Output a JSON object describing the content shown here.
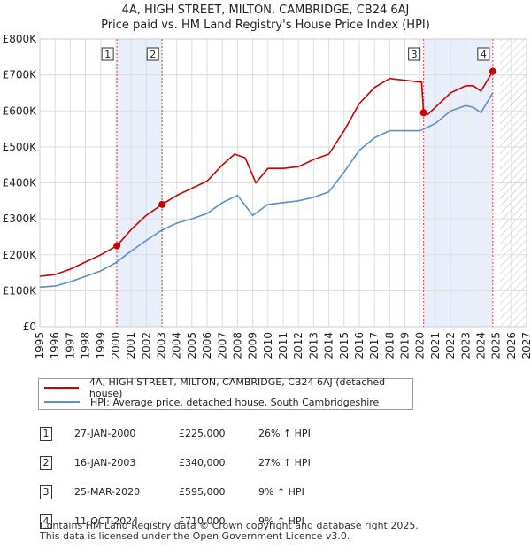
{
  "title": "4A, HIGH STREET, MILTON, CAMBRIDGE, CB24 6AJ",
  "subtitle": "Price paid vs. HM Land Registry's House Price Index (HPI)",
  "chart_data": {
    "type": "line",
    "ylim": [
      0,
      800000
    ],
    "xlim": [
      1995,
      2027
    ],
    "y_ticks": [
      0,
      100000,
      200000,
      300000,
      400000,
      500000,
      600000,
      700000,
      800000
    ],
    "y_tick_labels": [
      "£0",
      "£100K",
      "£200K",
      "£300K",
      "£400K",
      "£500K",
      "£600K",
      "£700K",
      "£800K"
    ],
    "x_ticks": [
      1995,
      1996,
      1997,
      1998,
      1999,
      2000,
      2001,
      2002,
      2003,
      2004,
      2005,
      2006,
      2007,
      2008,
      2009,
      2010,
      2011,
      2012,
      2013,
      2014,
      2015,
      2016,
      2017,
      2018,
      2019,
      2020,
      2021,
      2022,
      2023,
      2024,
      2025,
      2026,
      2027
    ],
    "grid": true,
    "projection_start": 2025.25,
    "shaded_periods": [
      [
        2000.07,
        2003.04
      ],
      [
        2020.23,
        2024.78
      ]
    ],
    "series": [
      {
        "name": "4A, HIGH STREET, MILTON, CAMBRIDGE, CB24 6AJ (detached house)",
        "color": "#cc0000",
        "x": [
          1995,
          1996,
          1997,
          1998,
          1999,
          2000.07,
          2001,
          2002,
          2003.04,
          2004,
          2005,
          2006,
          2007,
          2007.8,
          2008.5,
          2009.2,
          2010,
          2011,
          2012,
          2013,
          2014,
          2015,
          2016,
          2017,
          2018,
          2019,
          2020.1,
          2020.23,
          2020.5,
          2021,
          2022,
          2023,
          2023.5,
          2024,
          2024.78
        ],
        "y": [
          140000,
          145000,
          160000,
          180000,
          200000,
          225000,
          270000,
          310000,
          340000,
          365000,
          385000,
          405000,
          450000,
          480000,
          470000,
          400000,
          440000,
          440000,
          445000,
          465000,
          480000,
          545000,
          620000,
          665000,
          690000,
          685000,
          680000,
          595000,
          590000,
          610000,
          650000,
          670000,
          670000,
          655000,
          710000
        ]
      },
      {
        "name": "HPI: Average price, detached house, South Cambridgeshire",
        "color": "#5b8fc7",
        "x": [
          1995,
          1996,
          1997,
          1998,
          1999,
          2000,
          2001,
          2002,
          2003,
          2004,
          2005,
          2006,
          2007,
          2008,
          2009,
          2010,
          2011,
          2012,
          2013,
          2014,
          2015,
          2016,
          2017,
          2018,
          2019,
          2020,
          2021,
          2022,
          2023,
          2023.5,
          2024,
          2024.78
        ],
        "y": [
          110000,
          113000,
          125000,
          140000,
          155000,
          178000,
          210000,
          240000,
          268000,
          288000,
          300000,
          315000,
          345000,
          365000,
          310000,
          340000,
          345000,
          350000,
          360000,
          375000,
          430000,
          490000,
          525000,
          545000,
          545000,
          545000,
          565000,
          600000,
          615000,
          610000,
          595000,
          650000
        ]
      }
    ],
    "sales": [
      {
        "marker": "1",
        "x": 2000.07,
        "y": 225000
      },
      {
        "marker": "2",
        "x": 2003.04,
        "y": 340000
      },
      {
        "marker": "3",
        "x": 2020.23,
        "y": 595000
      },
      {
        "marker": "4",
        "x": 2024.78,
        "y": 710000
      }
    ]
  },
  "legend": {
    "property_label": "4A, HIGH STREET, MILTON, CAMBRIDGE, CB24 6AJ (detached house)",
    "hpi_label": "HPI: Average price, detached house, South Cambridgeshire"
  },
  "transactions": [
    {
      "num": "1",
      "date": "27-JAN-2000",
      "price": "£225,000",
      "hpi": "26% ↑ HPI"
    },
    {
      "num": "2",
      "date": "16-JAN-2003",
      "price": "£340,000",
      "hpi": "27% ↑ HPI"
    },
    {
      "num": "3",
      "date": "25-MAR-2020",
      "price": "£595,000",
      "hpi": "9% ↑ HPI"
    },
    {
      "num": "4",
      "date": "11-OCT-2024",
      "price": "£710,000",
      "hpi": "9% ↑ HPI"
    }
  ],
  "footer": {
    "line1": "Contains HM Land Registry data © Crown copyright and database right 2025.",
    "line2": "This data is licensed under the Open Government Licence v3.0."
  },
  "colors": {
    "property_line": "#cc0000",
    "hpi_line": "#5b8fc7",
    "shade": "#e8eefa",
    "grid": "#dddddd"
  }
}
